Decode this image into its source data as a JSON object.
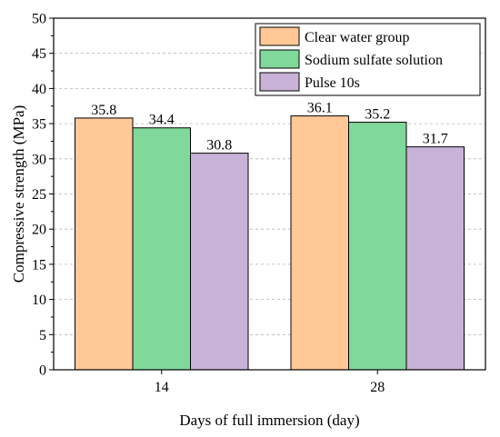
{
  "chart_data": {
    "type": "bar",
    "xlabel": "Days of full immersion (day)",
    "ylabel": "Compressive strength (MPa)",
    "ylim": [
      0,
      50
    ],
    "yticks": [
      0,
      5,
      10,
      15,
      20,
      25,
      30,
      35,
      40,
      45,
      50
    ],
    "categories": [
      "14",
      "28"
    ],
    "series": [
      {
        "name": "Clear water group",
        "color": "#FFC896",
        "values": [
          35.8,
          36.1
        ],
        "labels": [
          "35.8",
          "36.1"
        ]
      },
      {
        "name": "Sodium sulfate solution",
        "color": "#80D89A",
        "values": [
          34.4,
          35.2
        ],
        "labels": [
          "34.4",
          "35.2"
        ]
      },
      {
        "name": "Pulse 10s",
        "color": "#C8B2D8",
        "values": [
          30.8,
          31.7
        ],
        "labels": [
          "30.8",
          "31.7"
        ]
      }
    ],
    "grid": true,
    "legend_position": "top-right"
  }
}
